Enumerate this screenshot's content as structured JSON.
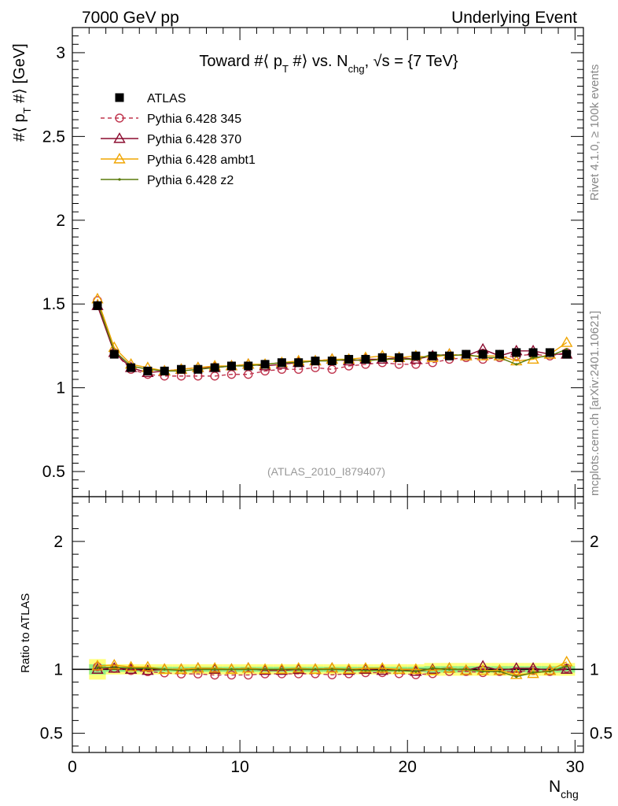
{
  "header": {
    "left": "7000 GeV pp",
    "right": "Underlying Event"
  },
  "side_labels": {
    "rivet": "Rivet 4.1.0, ≥ 100k events",
    "mcplots": "mcplots.cern.ch [arXiv:2401.10621]"
  },
  "chart_data": {
    "type": "line",
    "title": "Toward #⟨ p_T #⟩ vs. N_chg, √s = {7 TeV}",
    "title_parts": {
      "a": "Toward #⟨ p",
      "b": "T",
      "c": " #⟩ vs. N",
      "d": "chg",
      "e": ", √s = {7 TeV}"
    },
    "ylabel_parts": {
      "a": "#⟨ p",
      "b": "T",
      "c": " #⟩ [GeV]"
    },
    "xlabel_parts": {
      "a": "N",
      "b": "chg"
    },
    "ratio_ylabel": "Ratio to ATLAS",
    "analysis_id": "(ATLAS_2010_I879407)",
    "xlim": [
      0,
      30.5
    ],
    "ylim": [
      0.35,
      3.15
    ],
    "ratio_ylim": [
      0.35,
      2.35
    ],
    "x_ticks": [
      0,
      10,
      20,
      30
    ],
    "x_tick_labels": [
      "0",
      "10",
      "20",
      "30"
    ],
    "y_ticks": [
      0.5,
      1,
      1.5,
      2,
      2.5,
      3
    ],
    "y_tick_labels": [
      "0.5",
      "1",
      "1.5",
      "2",
      "2.5",
      "3"
    ],
    "ratio_y_ticks": [
      0.5,
      1,
      2
    ],
    "ratio_y_tick_labels": [
      "0.5",
      "1",
      "2"
    ],
    "x": [
      1.5,
      2.5,
      3.5,
      4.5,
      5.5,
      6.5,
      7.5,
      8.5,
      9.5,
      10.5,
      11.5,
      12.5,
      13.5,
      14.5,
      15.5,
      16.5,
      17.5,
      18.5,
      19.5,
      20.5,
      21.5,
      22.5,
      23.5,
      24.5,
      25.5,
      26.5,
      27.5,
      28.5,
      29.5
    ],
    "data": {
      "name": "ATLAS",
      "values": [
        1.49,
        1.2,
        1.12,
        1.1,
        1.1,
        1.11,
        1.11,
        1.12,
        1.13,
        1.13,
        1.14,
        1.15,
        1.15,
        1.16,
        1.16,
        1.17,
        1.17,
        1.18,
        1.18,
        1.19,
        1.19,
        1.19,
        1.2,
        1.2,
        1.2,
        1.21,
        1.21,
        1.21,
        1.2
      ]
    },
    "series": [
      {
        "name": "Pythia 6.428 345",
        "color": "#c0364f",
        "marker": "circle",
        "dash": true,
        "values": [
          1.52,
          1.21,
          1.11,
          1.08,
          1.07,
          1.07,
          1.07,
          1.07,
          1.08,
          1.08,
          1.1,
          1.11,
          1.11,
          1.12,
          1.11,
          1.13,
          1.14,
          1.15,
          1.14,
          1.14,
          1.15,
          1.17,
          1.18,
          1.17,
          1.18,
          1.19,
          1.2,
          1.19,
          1.21
        ]
      },
      {
        "name": "Pythia 6.428 370",
        "color": "#8b0a2e",
        "marker": "triangle",
        "dash": false,
        "values": [
          1.49,
          1.21,
          1.12,
          1.09,
          1.1,
          1.11,
          1.12,
          1.12,
          1.13,
          1.14,
          1.13,
          1.14,
          1.15,
          1.16,
          1.17,
          1.16,
          1.17,
          1.17,
          1.18,
          1.17,
          1.19,
          1.2,
          1.19,
          1.23,
          1.19,
          1.22,
          1.22,
          1.2,
          1.2
        ]
      },
      {
        "name": "Pythia 6.428 ambt1",
        "color": "#f0a500",
        "marker": "triangle",
        "dash": false,
        "values": [
          1.53,
          1.24,
          1.14,
          1.12,
          1.1,
          1.11,
          1.12,
          1.13,
          1.13,
          1.14,
          1.14,
          1.15,
          1.16,
          1.16,
          1.17,
          1.17,
          1.18,
          1.19,
          1.18,
          1.19,
          1.18,
          1.2,
          1.19,
          1.19,
          1.19,
          1.16,
          1.17,
          1.2,
          1.27
        ]
      },
      {
        "name": "Pythia 6.428 z2",
        "color": "#5a7a0a",
        "marker": "dot",
        "dash": false,
        "values": [
          1.51,
          1.22,
          1.13,
          1.11,
          1.1,
          1.1,
          1.11,
          1.12,
          1.13,
          1.13,
          1.14,
          1.15,
          1.15,
          1.16,
          1.16,
          1.17,
          1.16,
          1.17,
          1.17,
          1.17,
          1.2,
          1.19,
          1.2,
          1.18,
          1.18,
          1.14,
          1.18,
          1.19,
          1.23
        ]
      }
    ]
  }
}
